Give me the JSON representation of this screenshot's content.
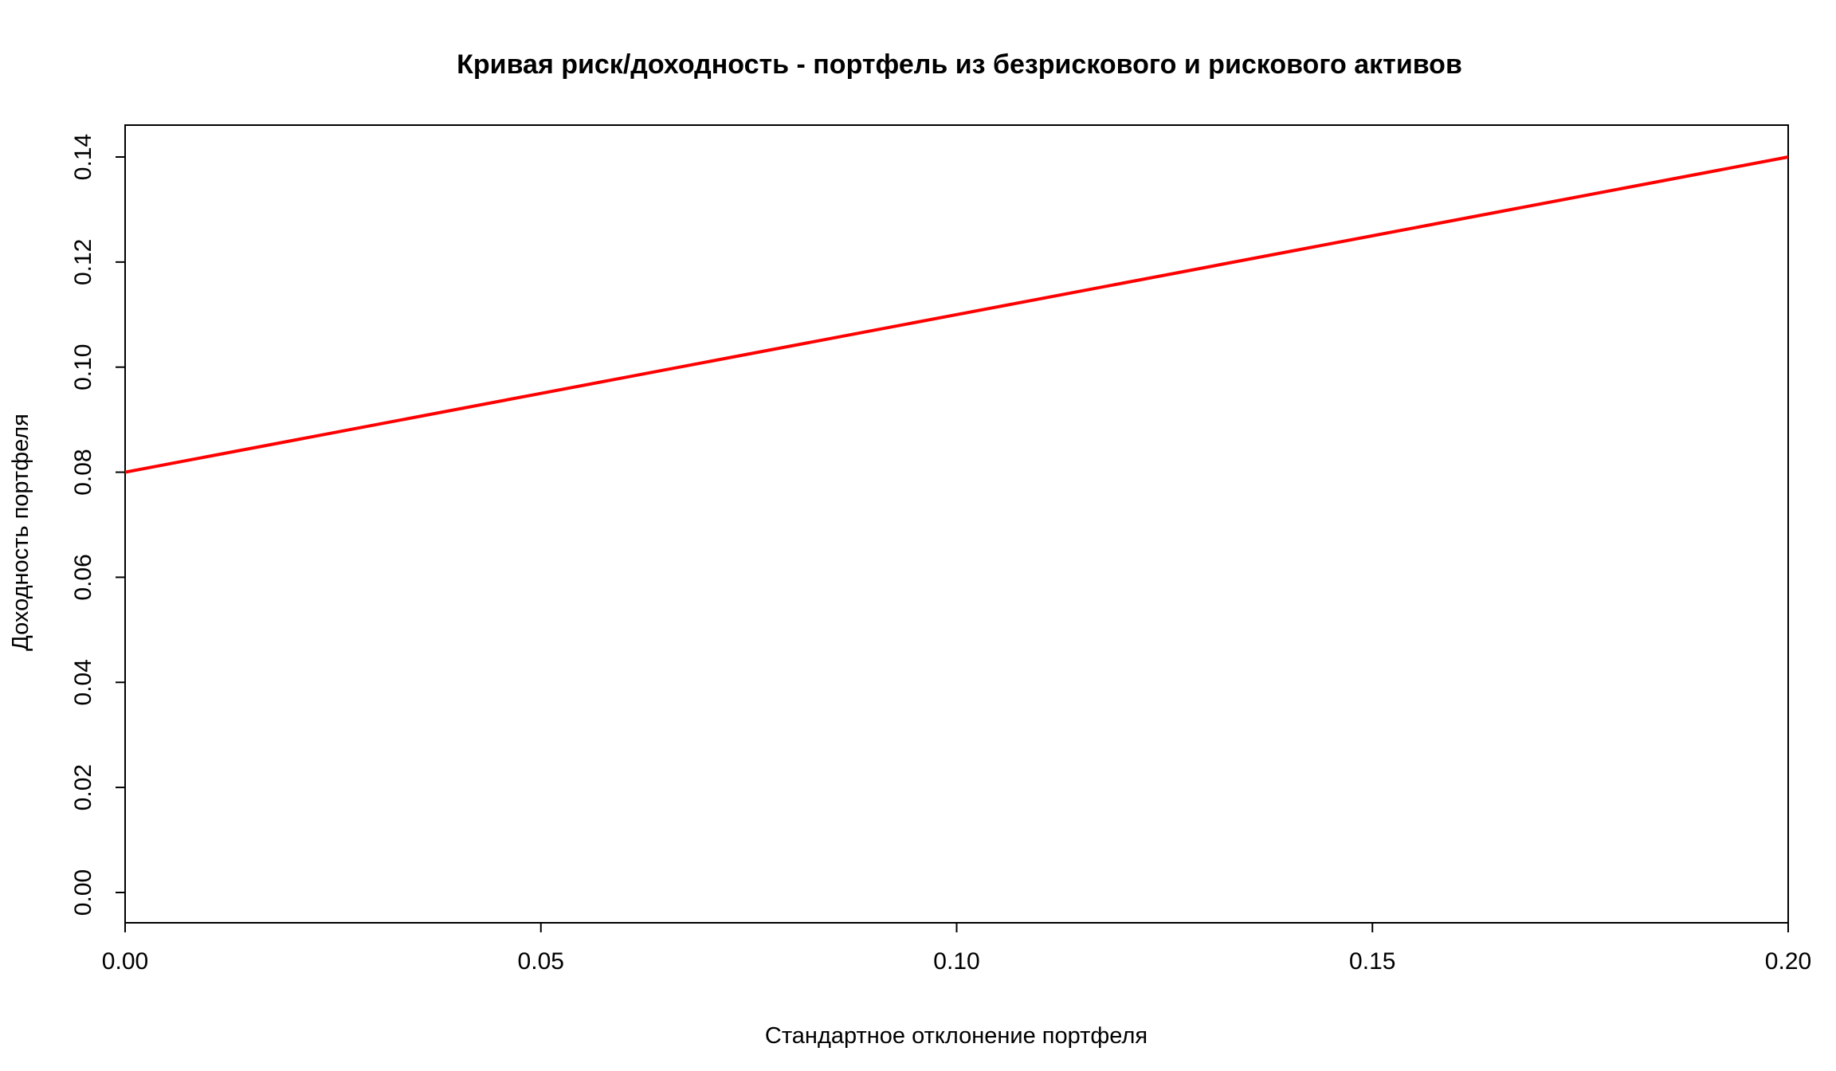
{
  "chart_data": {
    "type": "line",
    "title": "Кривая риск/доходность - портфель из безрискового и рискового активов",
    "xlabel": "Стандартное отклонение портфеля",
    "ylabel": "Доходность портфеля",
    "xlim": [
      0,
      0.2
    ],
    "ylim": [
      0,
      0.14
    ],
    "x_ticks": [
      "0.00",
      "0.05",
      "0.10",
      "0.15",
      "0.20"
    ],
    "y_ticks": [
      "0.00",
      "0.02",
      "0.04",
      "0.06",
      "0.08",
      "0.10",
      "0.12",
      "0.14"
    ],
    "grid": false,
    "series": [
      {
        "color": "#ff0000",
        "x": [
          0.0,
          0.05,
          0.1,
          0.15,
          0.2
        ],
        "y": [
          0.08,
          0.095,
          0.11,
          0.125,
          0.14
        ]
      }
    ]
  }
}
